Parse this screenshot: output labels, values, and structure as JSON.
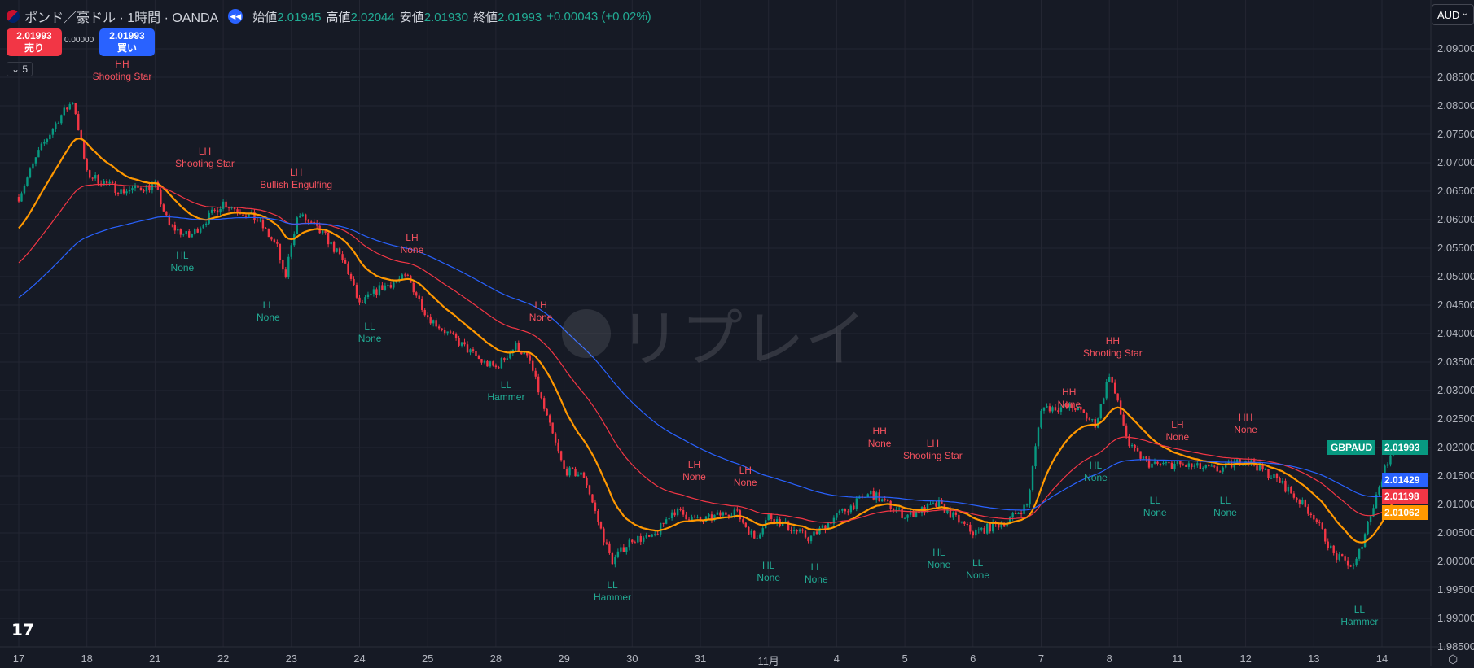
{
  "header": {
    "title": "ポンド／豪ドル · 1時間 · OANDA",
    "ohlc": [
      {
        "k": "始値",
        "v": "2.01945"
      },
      {
        "k": "高値",
        "v": "2.02044"
      },
      {
        "k": "安値",
        "v": "2.01930"
      },
      {
        "k": "終値",
        "v": "2.01993"
      }
    ],
    "change": "+0.00043 (+0.02%)"
  },
  "trade": {
    "sell_price": "2.01993",
    "sell_label": "売り",
    "buy_price": "2.01993",
    "buy_label": "買い",
    "spread": "0.00000"
  },
  "indicator_count": "5",
  "currency": "AUD",
  "watermark": "リプレイ",
  "price_axis": [
    "2.09000",
    "2.08500",
    "2.08000",
    "2.07500",
    "2.07000",
    "2.06500",
    "2.06000",
    "2.05500",
    "2.05000",
    "2.04500",
    "2.04000",
    "2.03500",
    "2.03000",
    "2.02500",
    "2.02000",
    "2.01500",
    "2.01000",
    "2.00500",
    "2.00000",
    "1.99500",
    "1.99000",
    "1.98500"
  ],
  "dates": [
    "17",
    "18",
    "21",
    "22",
    "23",
    "24",
    "25",
    "28",
    "29",
    "30",
    "31",
    "11月",
    "4",
    "5",
    "6",
    "7",
    "8",
    "11",
    "12",
    "13",
    "14"
  ],
  "badges": {
    "symbol": "GBPAUD",
    "last": "2.01993",
    "ma_slow": "2.01429",
    "ma_mid": "2.01198",
    "ma_fast": "2.01062"
  },
  "colors": {
    "up": "#089981",
    "down": "#f23645",
    "ma_fast": "#ff9800",
    "ma_mid": "#f23645",
    "ma_slow": "#2962ff"
  },
  "chart_data": {
    "type": "candlestick",
    "price_path": [
      [
        0,
        2.064
      ],
      [
        0.3,
        2.072
      ],
      [
        0.6,
        2.078
      ],
      [
        0.8,
        2.081
      ],
      [
        1.0,
        2.068
      ],
      [
        1.5,
        2.065
      ],
      [
        2.0,
        2.066
      ],
      [
        2.2,
        2.059
      ],
      [
        2.5,
        2.057
      ],
      [
        3.0,
        2.063
      ],
      [
        3.5,
        2.06
      ],
      [
        3.8,
        2.055
      ],
      [
        3.9,
        2.049
      ],
      [
        4.0,
        2.056
      ],
      [
        4.1,
        2.061
      ],
      [
        4.5,
        2.057
      ],
      [
        4.8,
        2.052
      ],
      [
        5.0,
        2.045
      ],
      [
        5.3,
        2.048
      ],
      [
        5.7,
        2.05
      ],
      [
        6.0,
        2.043
      ],
      [
        6.3,
        2.04
      ],
      [
        6.8,
        2.035
      ],
      [
        7.0,
        2.034
      ],
      [
        7.3,
        2.038
      ],
      [
        7.5,
        2.035
      ],
      [
        7.7,
        2.027
      ],
      [
        8.0,
        2.016
      ],
      [
        8.3,
        2.015
      ],
      [
        8.5,
        2.007
      ],
      [
        8.7,
        2.0
      ],
      [
        9.0,
        2.004
      ],
      [
        9.3,
        2.004
      ],
      [
        9.6,
        2.009
      ],
      [
        10,
        2.007
      ],
      [
        10.5,
        2.009
      ],
      [
        10.8,
        2.004
      ],
      [
        11,
        2.008
      ],
      [
        11.6,
        2.004
      ],
      [
        12,
        2.008
      ],
      [
        12.5,
        2.012
      ],
      [
        13,
        2.008
      ],
      [
        13.5,
        2.01
      ],
      [
        14,
        2.005
      ],
      [
        14.5,
        2.007
      ],
      [
        14.8,
        2.01
      ],
      [
        15,
        2.027
      ],
      [
        15.5,
        2.027
      ],
      [
        15.8,
        2.024
      ],
      [
        16,
        2.033
      ],
      [
        16.3,
        2.02
      ],
      [
        16.6,
        2.017
      ],
      [
        17,
        2.017
      ],
      [
        17.6,
        2.016
      ],
      [
        18,
        2.018
      ],
      [
        18.5,
        2.014
      ],
      [
        19,
        2.008
      ],
      [
        19.3,
        2.001
      ],
      [
        19.6,
        1.999
      ],
      [
        19.9,
        2.011
      ],
      [
        20.15,
        2.02
      ]
    ],
    "labels": [
      {
        "a": "HH",
        "b": "Shooting Star",
        "d": 0.69,
        "p": 2.0893,
        "c": "red"
      },
      {
        "a": "LH",
        "b": "Shooting Star",
        "d": 2.73,
        "p": 2.0718,
        "c": "red"
      },
      {
        "a": "LH",
        "b": "Bullish Engulfing",
        "d": 4.07,
        "p": 2.0682,
        "c": "red"
      },
      {
        "a": "HL",
        "b": "None",
        "d": 2.4,
        "p": 2.0536,
        "c": "grn"
      },
      {
        "a": "LL",
        "b": "None",
        "d": 3.66,
        "p": 2.0449,
        "c": "grn"
      },
      {
        "a": "LH",
        "b": "None",
        "d": 5.77,
        "p": 2.0567,
        "c": "red"
      },
      {
        "a": "LL",
        "b": "None",
        "d": 5.15,
        "p": 2.0411,
        "c": "grn"
      },
      {
        "a": "LH",
        "b": "None",
        "d": 7.66,
        "p": 2.0449,
        "c": "red"
      },
      {
        "a": "LL",
        "b": "Hammer",
        "d": 7.15,
        "p": 2.0309,
        "c": "grn"
      },
      {
        "a": "HH",
        "b": "None",
        "d": 15.41,
        "p": 2.0296,
        "c": "red"
      },
      {
        "a": "HH",
        "b": "Shooting Star",
        "d": 16.05,
        "p": 2.0386,
        "c": "red"
      },
      {
        "a": "HH",
        "b": "None",
        "d": 12.63,
        "p": 2.0227,
        "c": "red"
      },
      {
        "a": "LH",
        "b": "Shooting Star",
        "d": 13.41,
        "p": 2.0206,
        "c": "red"
      },
      {
        "a": "LH",
        "b": "None",
        "d": 9.91,
        "p": 2.0169,
        "c": "red"
      },
      {
        "a": "LH",
        "b": "None",
        "d": 10.66,
        "p": 2.0159,
        "c": "red"
      },
      {
        "a": "LH",
        "b": "None",
        "d": 17.0,
        "p": 2.0239,
        "c": "red"
      },
      {
        "a": "HH",
        "b": "None",
        "d": 18.0,
        "p": 2.0251,
        "c": "red"
      },
      {
        "a": "HL",
        "b": "None",
        "d": 15.8,
        "p": 2.0167,
        "c": "grn"
      },
      {
        "a": "LL",
        "b": "None",
        "d": 16.67,
        "p": 2.0106,
        "c": "grn"
      },
      {
        "a": "LL",
        "b": "None",
        "d": 17.7,
        "p": 2.0106,
        "c": "grn"
      },
      {
        "a": "HL",
        "b": "None",
        "d": 11.0,
        "p": 1.9991,
        "c": "grn"
      },
      {
        "a": "LL",
        "b": "None",
        "d": 11.7,
        "p": 1.9989,
        "c": "grn"
      },
      {
        "a": "HL",
        "b": "None",
        "d": 13.5,
        "p": 2.0014,
        "c": "grn"
      },
      {
        "a": "LL",
        "b": "None",
        "d": 14.07,
        "p": 1.9996,
        "c": "grn"
      },
      {
        "a": "LL",
        "b": "Hammer",
        "d": 8.71,
        "p": 1.9957,
        "c": "grn"
      },
      {
        "a": "LL",
        "b": "Hammer",
        "d": 19.67,
        "p": 1.9914,
        "c": "grn"
      }
    ]
  }
}
